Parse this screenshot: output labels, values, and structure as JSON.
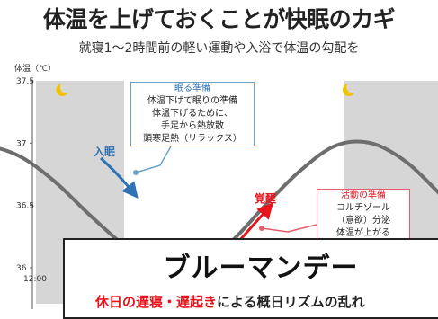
{
  "header": {
    "title": "体温を上げておくことが快眠のカギ",
    "subtitle": "就寝1～2時間前の軽い運動や入浴で体温の勾配を"
  },
  "chart_data": {
    "type": "line",
    "ylabel": "体温（℃）",
    "ylim": [
      36,
      37.5
    ],
    "yticks": [
      "37.5",
      "37",
      "36.5",
      "36"
    ],
    "xticks": [
      "12:00"
    ],
    "x": [
      -1.0,
      -0.6,
      -0.2,
      0.2,
      0.6,
      1.0,
      1.4,
      1.8,
      2.2,
      2.6,
      3.0,
      3.4,
      3.8,
      4.2,
      4.6,
      5.0
    ],
    "series": [
      {
        "values": [
          36.95,
          36.98,
          36.9,
          36.7,
          36.43,
          36.18,
          36.0,
          36.01,
          36.2,
          36.5,
          36.78,
          36.98,
          37.0,
          36.85,
          36.58,
          36.3
        ]
      }
    ],
    "night_bands": [
      [
        0.0,
        1.0
      ],
      [
        3.5,
        4.6
      ]
    ],
    "moon_positions": [
      0.3,
      3.55
    ]
  },
  "annotations": {
    "sleep_onset": "入眠",
    "wake": "覚醒",
    "sleep_box": {
      "title": "眠る準備",
      "lines": [
        "体温下げて眠りの準備",
        "体温下げるために、",
        "手足から熱放散",
        "頭寒足熱（リラックス）"
      ]
    },
    "activity_box": {
      "title": "活動の準備",
      "lines": [
        "コルチゾール",
        "（意欲）分泌",
        "体温が上がる"
      ]
    }
  },
  "overlay": {
    "title": "ブルーマンデー",
    "subtitle_red1": "休日の遅寝・遅起き",
    "subtitle_rest": "による概日リズムの乱れ"
  },
  "colors": {
    "band": "#d6d6d6",
    "curve": "#6e6e6e",
    "sleep_accent": "#2f73b5",
    "wake_accent": "#e8141c",
    "moon": "#f2c400"
  }
}
